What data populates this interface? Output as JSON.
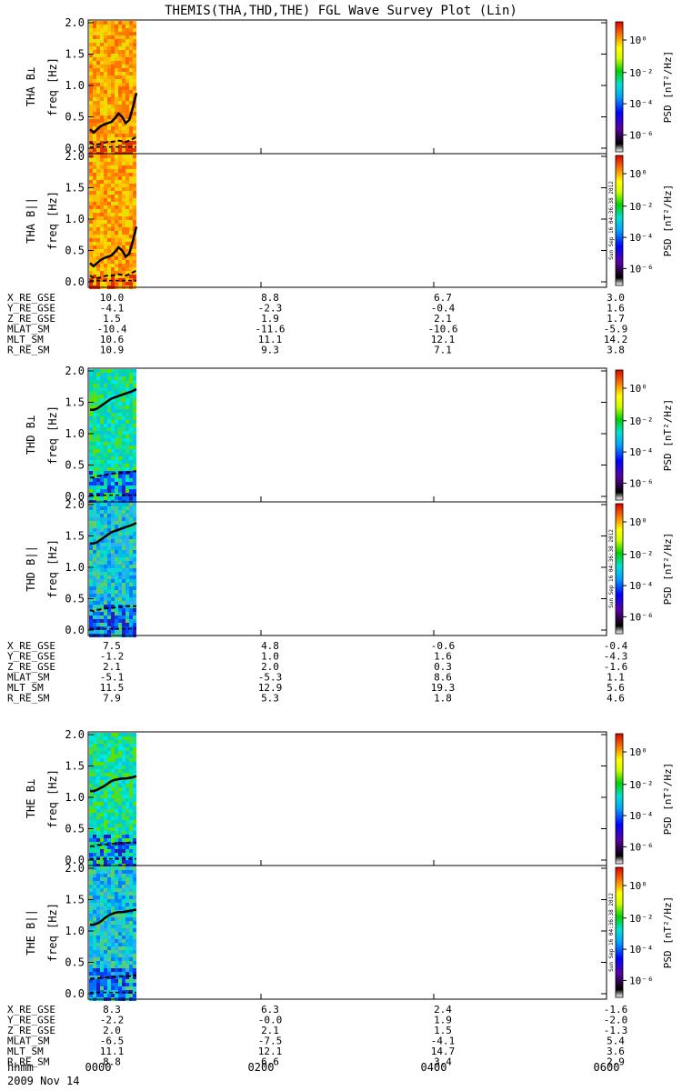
{
  "title": "THEMIS(THA,THD,THE) FGL Wave Survey Plot (Lin)",
  "time_label": "hhmm",
  "date_label": "2009 Nov 14",
  "time_ticks": [
    "0000",
    "0200",
    "0400",
    "0600"
  ],
  "freq_label": "freq [Hz]",
  "psd_label": "PSD [nT²/Hz]",
  "creation_stamp": "Sun Sep 16 04:36:38 2012",
  "colors": {
    "solid_line": "#000000",
    "dashed_line": "#000000"
  },
  "chart_data": [
    {
      "type": "heatmap",
      "probe": "THA",
      "panels": [
        {
          "ylabel": "THA B⊥",
          "ylim": [
            0,
            2.0
          ],
          "yticks": [
            "0.0",
            "0.5",
            "1.0",
            "1.5",
            "2.0"
          ],
          "data_span": [
            "0000",
            "0022"
          ],
          "dominant_level": "orange-yellow",
          "solid_line": [
            0.3,
            0.25,
            0.3,
            0.35,
            0.38,
            0.4,
            0.42,
            0.48,
            0.55,
            0.5,
            0.4,
            0.45,
            0.65,
            0.88
          ],
          "dashed_line": [
            0.1,
            0.06,
            0.06,
            0.07,
            0.09,
            0.1,
            0.1,
            0.11,
            0.12,
            0.11,
            0.1,
            0.12,
            0.15,
            0.18
          ]
        },
        {
          "ylabel": "THA B||",
          "ylim": [
            0,
            2.0
          ],
          "yticks": [
            "0.0",
            "0.5",
            "1.0",
            "1.5",
            "2.0"
          ],
          "data_span": [
            "0000",
            "0022"
          ],
          "dominant_level": "orange-yellow",
          "solid_line": [
            0.3,
            0.25,
            0.3,
            0.35,
            0.38,
            0.4,
            0.42,
            0.48,
            0.55,
            0.5,
            0.4,
            0.45,
            0.65,
            0.88
          ],
          "dashed_line": [
            0.1,
            0.06,
            0.06,
            0.07,
            0.09,
            0.1,
            0.1,
            0.11,
            0.12,
            0.11,
            0.1,
            0.12,
            0.15,
            0.18
          ]
        }
      ],
      "colorbar": {
        "ticks": [
          "10⁰",
          "10⁻²",
          "10⁻⁴",
          "10⁻⁶"
        ]
      },
      "ephemeris": [
        {
          "label": "X_RE_GSE",
          "values": [
            "10.0",
            "8.8",
            "6.7",
            "3.0"
          ]
        },
        {
          "label": "Y_RE_GSE",
          "values": [
            "-4.1",
            "-2.3",
            "-0.4",
            "1.6"
          ]
        },
        {
          "label": "Z_RE_GSE",
          "values": [
            "1.5",
            "1.9",
            "2.1",
            "1.7"
          ]
        },
        {
          "label": "MLAT_SM",
          "values": [
            "-10.4",
            "-11.6",
            "-10.6",
            "-5.9"
          ]
        },
        {
          "label": "MLT_SM",
          "values": [
            "10.6",
            "11.1",
            "12.1",
            "14.2"
          ]
        },
        {
          "label": "R_RE_SM",
          "values": [
            "10.9",
            "9.3",
            "7.1",
            "3.8"
          ]
        }
      ]
    },
    {
      "type": "heatmap",
      "probe": "THD",
      "panels": [
        {
          "ylabel": "THD B⊥",
          "ylim": [
            0,
            2.0
          ],
          "yticks": [
            "0.0",
            "0.5",
            "1.0",
            "1.5",
            "2.0"
          ],
          "data_span": [
            "0000",
            "0022"
          ],
          "dominant_level": "cyan-green",
          "solid_line": [
            1.38,
            1.38,
            1.4,
            1.44,
            1.48,
            1.52,
            1.56,
            1.58,
            1.6,
            1.62,
            1.64,
            1.66,
            1.68,
            1.71
          ],
          "dashed_line": [
            0.3,
            0.3,
            0.32,
            0.33,
            0.34,
            0.35,
            0.36,
            0.37,
            0.37,
            0.38,
            0.38,
            0.39,
            0.4,
            0.4
          ]
        },
        {
          "ylabel": "THD B||",
          "ylim": [
            0,
            2.0
          ],
          "yticks": [
            "0.0",
            "0.5",
            "1.0",
            "1.5",
            "2.0"
          ],
          "data_span": [
            "0000",
            "0022"
          ],
          "dominant_level": "cyan-blue",
          "solid_line": [
            1.38,
            1.38,
            1.4,
            1.44,
            1.48,
            1.52,
            1.56,
            1.58,
            1.6,
            1.62,
            1.64,
            1.66,
            1.68,
            1.71
          ],
          "dashed_line": [
            0.32,
            0.3,
            0.32,
            0.33,
            0.34,
            0.35,
            0.35,
            0.36,
            0.37,
            0.37,
            0.38,
            0.38,
            0.38,
            0.38
          ]
        }
      ],
      "colorbar": {
        "ticks": [
          "10⁰",
          "10⁻²",
          "10⁻⁴",
          "10⁻⁶"
        ]
      },
      "ephemeris": [
        {
          "label": "X_RE_GSE",
          "values": [
            "7.5",
            "4.8",
            "-0.6",
            "-0.4"
          ]
        },
        {
          "label": "Y_RE_GSE",
          "values": [
            "-1.2",
            "1.0",
            "1.6",
            "-4.3"
          ]
        },
        {
          "label": "Z_RE_GSE",
          "values": [
            "2.1",
            "2.0",
            "0.3",
            "-1.6"
          ]
        },
        {
          "label": "MLAT_SM",
          "values": [
            "-5.1",
            "-5.3",
            "8.6",
            "1.1"
          ]
        },
        {
          "label": "MLT_SM",
          "values": [
            "11.5",
            "12.9",
            "19.3",
            "5.6"
          ]
        },
        {
          "label": "R_RE_SM",
          "values": [
            "7.9",
            "5.3",
            "1.8",
            "4.6"
          ]
        }
      ]
    },
    {
      "type": "heatmap",
      "probe": "THE",
      "panels": [
        {
          "ylabel": "THE B⊥",
          "ylim": [
            0,
            2.0
          ],
          "yticks": [
            "0.0",
            "0.5",
            "1.0",
            "1.5",
            "2.0"
          ],
          "data_span": [
            "0000",
            "0022"
          ],
          "dominant_level": "cyan-green",
          "solid_line": [
            1.1,
            1.1,
            1.12,
            1.15,
            1.18,
            1.22,
            1.26,
            1.28,
            1.29,
            1.3,
            1.3,
            1.31,
            1.32,
            1.34
          ],
          "dashed_line": [
            0.22,
            0.22,
            0.24,
            0.24,
            0.25,
            0.25,
            0.26,
            0.26,
            0.27,
            0.27,
            0.27,
            0.28,
            0.28,
            0.28
          ]
        },
        {
          "ylabel": "THE B||",
          "ylim": [
            0,
            2.0
          ],
          "yticks": [
            "0.0",
            "0.5",
            "1.0",
            "1.5",
            "2.0"
          ],
          "data_span": [
            "0000",
            "0022"
          ],
          "dominant_level": "cyan-blue",
          "solid_line": [
            1.1,
            1.1,
            1.12,
            1.15,
            1.2,
            1.24,
            1.27,
            1.29,
            1.3,
            1.3,
            1.31,
            1.32,
            1.33,
            1.34
          ],
          "dashed_line": [
            0.24,
            0.24,
            0.25,
            0.25,
            0.26,
            0.26,
            0.27,
            0.27,
            0.28,
            0.28,
            0.28,
            0.28,
            0.29,
            0.29
          ]
        }
      ],
      "colorbar": {
        "ticks": [
          "10⁰",
          "10⁻²",
          "10⁻⁴",
          "10⁻⁶"
        ]
      },
      "ephemeris": [
        {
          "label": "X_RE_GSE",
          "values": [
            "8.3",
            "6.3",
            "2.4",
            "-1.6"
          ]
        },
        {
          "label": "Y_RE_GSE",
          "values": [
            "-2.2",
            "-0.0",
            "1.9",
            "-2.0"
          ]
        },
        {
          "label": "Z_RE_GSE",
          "values": [
            "2.0",
            "2.1",
            "1.5",
            "-1.3"
          ]
        },
        {
          "label": "MLAT_SM",
          "values": [
            "-6.5",
            "-7.5",
            "-4.1",
            "5.4"
          ]
        },
        {
          "label": "MLT_SM",
          "values": [
            "11.1",
            "12.1",
            "14.7",
            "3.6"
          ]
        },
        {
          "label": "R_RE_SM",
          "values": [
            "8.8",
            "6.6",
            "3.4",
            "2.9"
          ]
        }
      ]
    }
  ]
}
